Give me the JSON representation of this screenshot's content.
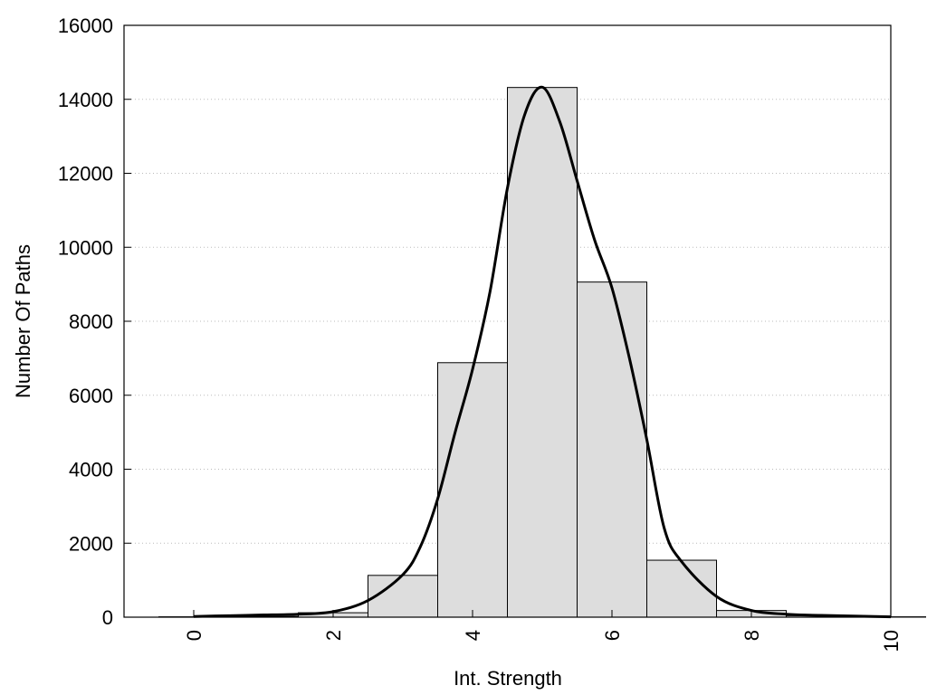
{
  "chart_data": {
    "type": "bar",
    "title": "",
    "xlabel": "Int. Strength",
    "ylabel": "Number Of Paths",
    "xlim": [
      -1,
      10
    ],
    "ylim": [
      0,
      16000
    ],
    "x_ticks": [
      0,
      2,
      4,
      6,
      8,
      10
    ],
    "y_ticks": [
      0,
      2000,
      4000,
      6000,
      8000,
      10000,
      12000,
      14000,
      16000
    ],
    "grid": "horizontal-dotted",
    "bar_color": "#dddddd",
    "bar_edge_color": "#000000",
    "bars": {
      "x": [
        0,
        1,
        2,
        3,
        4,
        5,
        6,
        7,
        8,
        9,
        10
      ],
      "values": [
        10,
        20,
        120,
        1130,
        6880,
        14320,
        9060,
        1540,
        180,
        40,
        10
      ]
    },
    "curve": {
      "x": [
        0,
        0.5,
        1,
        1.5,
        2,
        2.5,
        3,
        3.25,
        3.5,
        3.75,
        4,
        4.25,
        4.5,
        4.75,
        5,
        5.25,
        5.5,
        5.75,
        6,
        6.25,
        6.5,
        6.75,
        7,
        7.5,
        8,
        8.5,
        9,
        10
      ],
      "y": [
        20,
        40,
        60,
        80,
        150,
        450,
        1150,
        1900,
        3200,
        5000,
        6700,
        8800,
        11600,
        13600,
        14330,
        13400,
        11800,
        10200,
        8900,
        7000,
        4800,
        2400,
        1500,
        560,
        180,
        80,
        50,
        10
      ]
    }
  }
}
